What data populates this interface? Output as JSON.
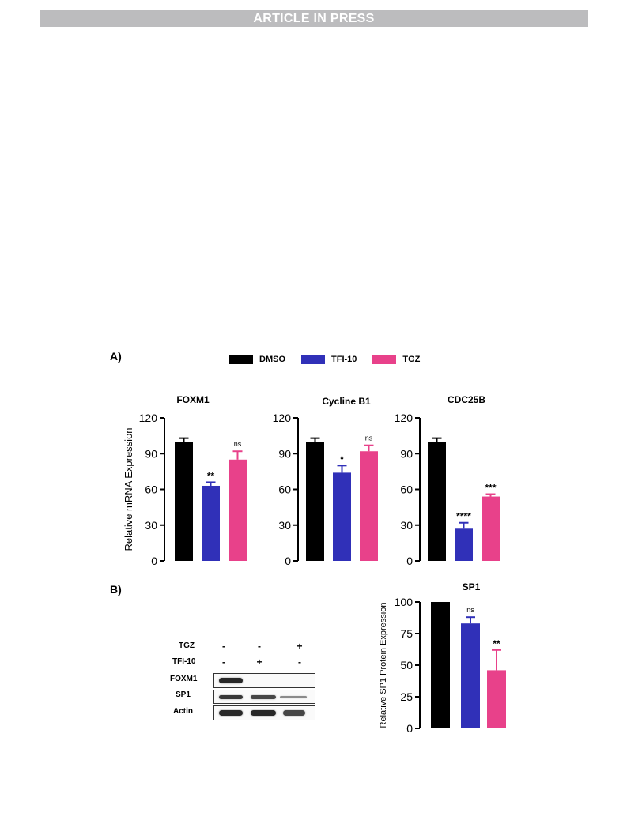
{
  "header": {
    "banner": "ARTICLE IN PRESS"
  },
  "panels": {
    "a_label": "A)",
    "b_label": "B)"
  },
  "legend": [
    {
      "label": "DMSO",
      "color": "#000000"
    },
    {
      "label": "TFI-10",
      "color": "#3030b8"
    },
    {
      "label": "TGZ",
      "color": "#e8418a"
    }
  ],
  "chart_data": [
    {
      "type": "bar",
      "title": "FOXM1",
      "ylabel": "Relative mRNA Expression",
      "ylim": [
        0,
        120
      ],
      "yticks": [
        "0",
        "30",
        "60",
        "90",
        "120"
      ],
      "categories": [
        "DMSO",
        "TFI-10",
        "TGZ"
      ],
      "values": [
        100,
        63,
        85
      ],
      "errors": [
        3,
        3,
        7
      ],
      "annotations": [
        "",
        "**",
        "ns"
      ]
    },
    {
      "type": "bar",
      "title": "Cycline B1",
      "ylabel": "",
      "ylim": [
        0,
        120
      ],
      "yticks": [
        "0",
        "30",
        "60",
        "90",
        "120"
      ],
      "categories": [
        "DMSO",
        "TFI-10",
        "TGZ"
      ],
      "values": [
        100,
        74,
        92
      ],
      "errors": [
        3,
        6,
        5
      ],
      "annotations": [
        "",
        "*",
        "ns"
      ]
    },
    {
      "type": "bar",
      "title": "CDC25B",
      "ylabel": "",
      "ylim": [
        0,
        120
      ],
      "yticks": [
        "0",
        "30",
        "60",
        "90",
        "120"
      ],
      "categories": [
        "DMSO",
        "TFI-10",
        "TGZ"
      ],
      "values": [
        100,
        27,
        54
      ],
      "errors": [
        3,
        5,
        2
      ],
      "annotations": [
        "",
        "****",
        "***"
      ]
    },
    {
      "type": "bar",
      "title": "SP1",
      "ylabel": "Relative SP1 Protein Expression",
      "ylim": [
        0,
        100
      ],
      "yticks": [
        "0",
        "25",
        "50",
        "75",
        "100"
      ],
      "categories": [
        "DMSO",
        "TFI-10",
        "TGZ"
      ],
      "values": [
        100,
        83,
        46
      ],
      "errors": [
        0,
        5,
        16
      ],
      "annotations": [
        "",
        "ns",
        "**"
      ]
    }
  ],
  "blot": {
    "row_labels": [
      "TGZ",
      "TFI-10"
    ],
    "rows": [
      [
        "-",
        "-",
        "+"
      ],
      [
        "-",
        "+",
        "-"
      ]
    ],
    "bands": [
      {
        "label": "FOXM1",
        "intensity": [
          1.0,
          0.0,
          0.0
        ]
      },
      {
        "label": "SP1",
        "intensity": [
          0.9,
          0.8,
          0.35
        ]
      },
      {
        "label": "Actin",
        "intensity": [
          1.0,
          1.0,
          0.8
        ]
      }
    ]
  }
}
